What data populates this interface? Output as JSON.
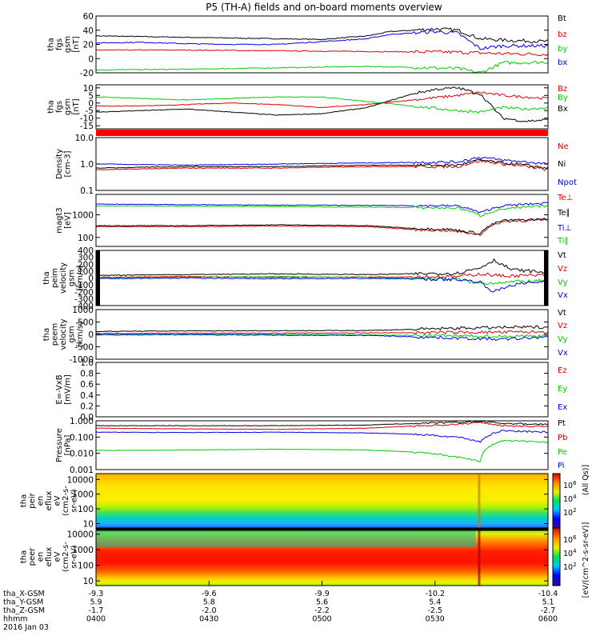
{
  "title": "P5 (TH-A) fields and on-board moments overview",
  "colors": {
    "black": "#000000",
    "red": "#dd0000",
    "green": "#00cc00",
    "blue": "#0000ee",
    "bar_red": "#ff0000"
  },
  "chart_data": [
    {
      "type": "line",
      "ylabel": [
        "tha",
        "fgs",
        "gsm",
        "[nT]"
      ],
      "ylim": [
        -20,
        60
      ],
      "yticks": [
        -20,
        0,
        20,
        40,
        60
      ],
      "ytick_labels": [
        "-20",
        "0",
        "20",
        "40",
        "60"
      ],
      "series": [
        {
          "name": "Bt",
          "color": "black",
          "x": [
            0,
            10,
            20,
            30,
            40,
            50,
            60,
            65,
            70,
            75,
            80,
            85,
            90,
            95,
            100
          ],
          "y": [
            32,
            31,
            30,
            29,
            28,
            27,
            32,
            38,
            40,
            42,
            40,
            28,
            26,
            25,
            24
          ]
        },
        {
          "name": "bz",
          "color": "red",
          "x": [
            0,
            20,
            40,
            60,
            80,
            85,
            90,
            100
          ],
          "y": [
            12,
            12,
            11,
            10,
            9,
            8,
            7,
            6
          ]
        },
        {
          "name": "by",
          "color": "green",
          "x": [
            0,
            20,
            40,
            50,
            60,
            80,
            85,
            90,
            100
          ],
          "y": [
            -16,
            -15,
            -13,
            -12,
            -11,
            -14,
            -20,
            -6,
            -5
          ]
        },
        {
          "name": "bx",
          "color": "blue",
          "x": [
            0,
            10,
            20,
            30,
            40,
            50,
            60,
            65,
            70,
            75,
            80,
            85,
            90,
            100
          ],
          "y": [
            22,
            23,
            21,
            20,
            20,
            24,
            28,
            34,
            36,
            38,
            36,
            14,
            18,
            18
          ]
        }
      ],
      "labels": [
        "Bt",
        "bz",
        "by",
        "bx"
      ]
    },
    {
      "type": "line",
      "ylabel": [
        "tha",
        "fgs",
        "gsm",
        "[nT]"
      ],
      "ylim": [
        -17,
        12
      ],
      "yticks": [
        -15,
        -10,
        -5,
        0,
        5,
        10
      ],
      "ytick_labels": [
        "-15",
        "-10",
        "-5",
        "0",
        "5",
        "10"
      ],
      "series": [
        {
          "name": "Bz",
          "color": "red",
          "x": [
            0,
            10,
            20,
            30,
            40,
            50,
            60,
            70,
            80,
            85,
            90,
            95,
            100
          ],
          "y": [
            -2,
            -2,
            -1,
            0,
            -1,
            -3,
            -1,
            2,
            5,
            7,
            5,
            4,
            3
          ]
        },
        {
          "name": "By",
          "color": "green",
          "x": [
            0,
            10,
            20,
            30,
            40,
            50,
            60,
            70,
            80,
            85,
            90,
            95,
            100
          ],
          "y": [
            4,
            3,
            2,
            3,
            4,
            4,
            1,
            -2,
            -5,
            -6,
            -3,
            -4,
            -3
          ]
        },
        {
          "name": "Bx",
          "color": "black",
          "x": [
            0,
            10,
            20,
            30,
            40,
            50,
            60,
            70,
            75,
            80,
            85,
            90,
            95,
            100
          ],
          "y": [
            -6,
            -5,
            -4,
            -6,
            -8,
            -7,
            -3,
            6,
            9,
            10,
            6,
            -10,
            -12,
            -11
          ]
        }
      ],
      "labels": [
        "Bz",
        "By",
        "Bx"
      ]
    },
    {
      "type": "line",
      "ylabel": [
        "Density",
        "[cm-3]"
      ],
      "yscale": "log",
      "ylim": [
        0.1,
        10.0
      ],
      "yticks": [
        0.1,
        1.0,
        10.0
      ],
      "ytick_labels": [
        "0.1",
        "1.0",
        "10.0"
      ],
      "series": [
        {
          "name": "Ne",
          "color": "red",
          "x": [
            0,
            20,
            40,
            60,
            80,
            85,
            90,
            100
          ],
          "y": [
            0.6,
            0.7,
            0.7,
            0.8,
            0.8,
            1.3,
            1.0,
            0.6
          ]
        },
        {
          "name": "Ni",
          "color": "black",
          "x": [
            0,
            20,
            40,
            60,
            80,
            85,
            90,
            100
          ],
          "y": [
            0.7,
            0.8,
            0.8,
            0.9,
            0.9,
            1.4,
            1.1,
            0.7
          ]
        },
        {
          "name": "Npot",
          "color": "blue",
          "x": [
            0,
            20,
            40,
            60,
            80,
            85,
            90,
            100
          ],
          "y": [
            1.0,
            0.9,
            1.0,
            1.1,
            1.2,
            1.8,
            1.4,
            1.0
          ]
        }
      ],
      "labels": [
        "Ne",
        "Ni",
        "Npot"
      ]
    },
    {
      "type": "line",
      "ylabel": [
        "magt3",
        "[eV]"
      ],
      "yscale": "log",
      "ylim": [
        40,
        8000
      ],
      "yticks": [
        100,
        1000
      ],
      "ytick_labels": [
        "100",
        "1000"
      ],
      "series": [
        {
          "name": "Te⊥",
          "color": "red",
          "x": [
            0,
            20,
            40,
            60,
            70,
            78,
            85,
            90,
            100
          ],
          "y": [
            300,
            300,
            320,
            300,
            220,
            200,
            130,
            500,
            600
          ]
        },
        {
          "name": "Te∥",
          "color": "black",
          "x": [
            0,
            20,
            40,
            60,
            70,
            78,
            85,
            90,
            100
          ],
          "y": [
            330,
            330,
            360,
            330,
            250,
            230,
            150,
            560,
            650
          ]
        },
        {
          "name": "Ti⊥",
          "color": "blue",
          "x": [
            0,
            20,
            40,
            60,
            80,
            85,
            90,
            100
          ],
          "y": [
            3000,
            2800,
            2700,
            2600,
            2500,
            1200,
            2500,
            3300
          ]
        },
        {
          "name": "Ti∥",
          "color": "green",
          "x": [
            0,
            20,
            40,
            60,
            80,
            85,
            90,
            100
          ],
          "y": [
            2500,
            2400,
            2300,
            2200,
            2000,
            900,
            1800,
            2500
          ]
        }
      ],
      "labels": [
        "Te⊥",
        "Te∥",
        "Ti⊥",
        "Ti∥"
      ]
    },
    {
      "type": "line",
      "ylabel": [
        "tha",
        "peim",
        "velocity",
        "gsm",
        "[km/s]"
      ],
      "ylim": [
        -400,
        400
      ],
      "yticks": [
        -400,
        -300,
        -200,
        -100,
        0,
        100,
        200,
        300,
        400
      ],
      "ytick_labels": [
        "-400",
        "-300",
        "-200",
        "-100",
        "0",
        "100",
        "200",
        "300",
        "400"
      ],
      "series": [
        {
          "name": "Vt",
          "color": "black",
          "x": [
            0,
            20,
            40,
            60,
            80,
            85,
            88,
            92,
            100
          ],
          "y": [
            40,
            50,
            60,
            50,
            70,
            150,
            260,
            120,
            80
          ]
        },
        {
          "name": "Vz",
          "color": "red",
          "x": [
            0,
            20,
            40,
            60,
            80,
            85,
            90,
            100
          ],
          "y": [
            10,
            20,
            10,
            15,
            20,
            60,
            30,
            40
          ]
        },
        {
          "name": "Vy",
          "color": "green",
          "x": [
            0,
            20,
            40,
            60,
            80,
            85,
            90,
            100
          ],
          "y": [
            0,
            10,
            20,
            10,
            -20,
            -80,
            -60,
            -40
          ]
        },
        {
          "name": "Vx",
          "color": "blue",
          "x": [
            0,
            20,
            40,
            60,
            80,
            85,
            88,
            92,
            100
          ],
          "y": [
            -10,
            0,
            -10,
            -5,
            -20,
            -60,
            -200,
            -100,
            -40
          ]
        }
      ],
      "labels": [
        "Vt",
        "Vz",
        "Vy",
        "Vx"
      ]
    },
    {
      "type": "line",
      "ylabel": [
        "tha",
        "peem",
        "velocity",
        "gsm",
        "[km/s]"
      ],
      "ylim": [
        -1000,
        1000
      ],
      "yticks": [
        -1000,
        -500,
        0,
        500,
        1000
      ],
      "ytick_labels": [
        "-1000",
        "-500",
        "0",
        "500",
        "1000"
      ],
      "series": [
        {
          "name": "Vt",
          "color": "black",
          "x": [
            0,
            20,
            40,
            60,
            70,
            80,
            90,
            100
          ],
          "y": [
            120,
            140,
            150,
            160,
            200,
            250,
            280,
            300
          ]
        },
        {
          "name": "Vz",
          "color": "red",
          "x": [
            0,
            20,
            40,
            60,
            80,
            90,
            100
          ],
          "y": [
            40,
            50,
            50,
            60,
            80,
            90,
            100
          ]
        },
        {
          "name": "Vy",
          "color": "green",
          "x": [
            0,
            20,
            40,
            60,
            80,
            90,
            100
          ],
          "y": [
            0,
            10,
            0,
            -20,
            -60,
            -80,
            -50
          ]
        },
        {
          "name": "Vx",
          "color": "blue",
          "x": [
            0,
            20,
            40,
            60,
            80,
            90,
            100
          ],
          "y": [
            -20,
            -10,
            -30,
            -40,
            -150,
            -200,
            -100
          ]
        }
      ],
      "labels": [
        "Vt",
        "Vz",
        "Vy",
        "Vx"
      ]
    },
    {
      "type": "line",
      "ylabel": [
        "E=-VxB",
        "[mV/m]"
      ],
      "ylim": [
        0.0,
        1.0
      ],
      "yticks": [
        0.0,
        0.2,
        0.4,
        0.6,
        0.8,
        1.0
      ],
      "ytick_labels": [
        "0.0",
        "0.2",
        "0.4",
        "0.6",
        "0.8",
        "1.0"
      ],
      "series": [],
      "labels": [
        "Ez",
        "Ey",
        "Ex"
      ]
    },
    {
      "type": "line",
      "ylabel": [
        "Pressure",
        "[nPa]"
      ],
      "yscale": "log",
      "ylim": [
        0.001,
        1.0
      ],
      "yticks": [
        0.001,
        0.01,
        0.1,
        1.0
      ],
      "ytick_labels": [
        "0.001",
        "0.010",
        "0.100",
        "1.000"
      ],
      "series": [
        {
          "name": "Pt",
          "color": "black",
          "x": [
            0,
            20,
            40,
            60,
            80,
            85,
            90,
            100
          ],
          "y": [
            0.5,
            0.5,
            0.5,
            0.55,
            0.8,
            0.9,
            0.7,
            0.6
          ]
        },
        {
          "name": "Pb",
          "color": "red",
          "x": [
            0,
            20,
            40,
            60,
            80,
            85,
            90,
            100
          ],
          "y": [
            0.35,
            0.32,
            0.3,
            0.35,
            0.6,
            0.8,
            0.5,
            0.45
          ]
        },
        {
          "name": "Pe",
          "color": "green",
          "x": [
            0,
            20,
            40,
            60,
            70,
            80,
            85,
            90,
            100
          ],
          "y": [
            0.015,
            0.016,
            0.018,
            0.016,
            0.012,
            0.006,
            0.003,
            0.06,
            0.05
          ]
        },
        {
          "name": "Pi",
          "color": "blue",
          "x": [
            0,
            20,
            40,
            60,
            70,
            80,
            85,
            90,
            100
          ],
          "y": [
            0.2,
            0.19,
            0.2,
            0.18,
            0.15,
            0.1,
            0.05,
            0.25,
            0.2
          ]
        }
      ],
      "labels": [
        "Pt",
        "Pb",
        "Pe",
        "Pi"
      ]
    },
    {
      "type": "heatmap",
      "ylabel": [
        "tha",
        "peir",
        "en",
        "eflux",
        "eV",
        "(cm2-s-",
        "sr-eV)"
      ],
      "yscale": "log",
      "ylim": [
        5,
        25000
      ],
      "yticks": [
        10,
        100,
        1000,
        10000
      ],
      "ytick_labels": [
        "10",
        "100",
        "1000",
        "10000"
      ]
    },
    {
      "type": "heatmap",
      "ylabel": [
        "tha",
        "peer",
        "en",
        "eflux",
        "eV",
        "(cm2-s-",
        "sr-eV)"
      ],
      "yscale": "log",
      "ylim": [
        5,
        25000
      ],
      "yticks": [
        10,
        100,
        1000,
        10000
      ],
      "ytick_labels": [
        "10",
        "100",
        "1000",
        "10000"
      ]
    }
  ],
  "colorbar": {
    "label": "[eV/(cm^2-s-sr-eV)]",
    "label2": "(All Qs)]",
    "ticks": [
      "10^6",
      "10^4",
      "10^2"
    ],
    "ticks2": [
      "10^6",
      "10^4",
      "10^2"
    ]
  },
  "x_axis": {
    "rows": [
      {
        "label": "tha_X-GSM",
        "values": [
          "-9.3",
          "-9.6",
          "-9.9",
          "-10.2",
          "-10.4"
        ]
      },
      {
        "label": "tha_Y-GSM",
        "values": [
          "5.9",
          "5.8",
          "5.6",
          "5.4",
          "5.1"
        ]
      },
      {
        "label": "tha_Z-GSM",
        "values": [
          "-1.7",
          "-2.0",
          "-2.2",
          "-2.5",
          "-2.7"
        ]
      },
      {
        "label": "hhmm",
        "values": [
          "0400",
          "0430",
          "0500",
          "0530",
          "0600"
        ]
      }
    ],
    "date": "2016 Jan 03"
  }
}
